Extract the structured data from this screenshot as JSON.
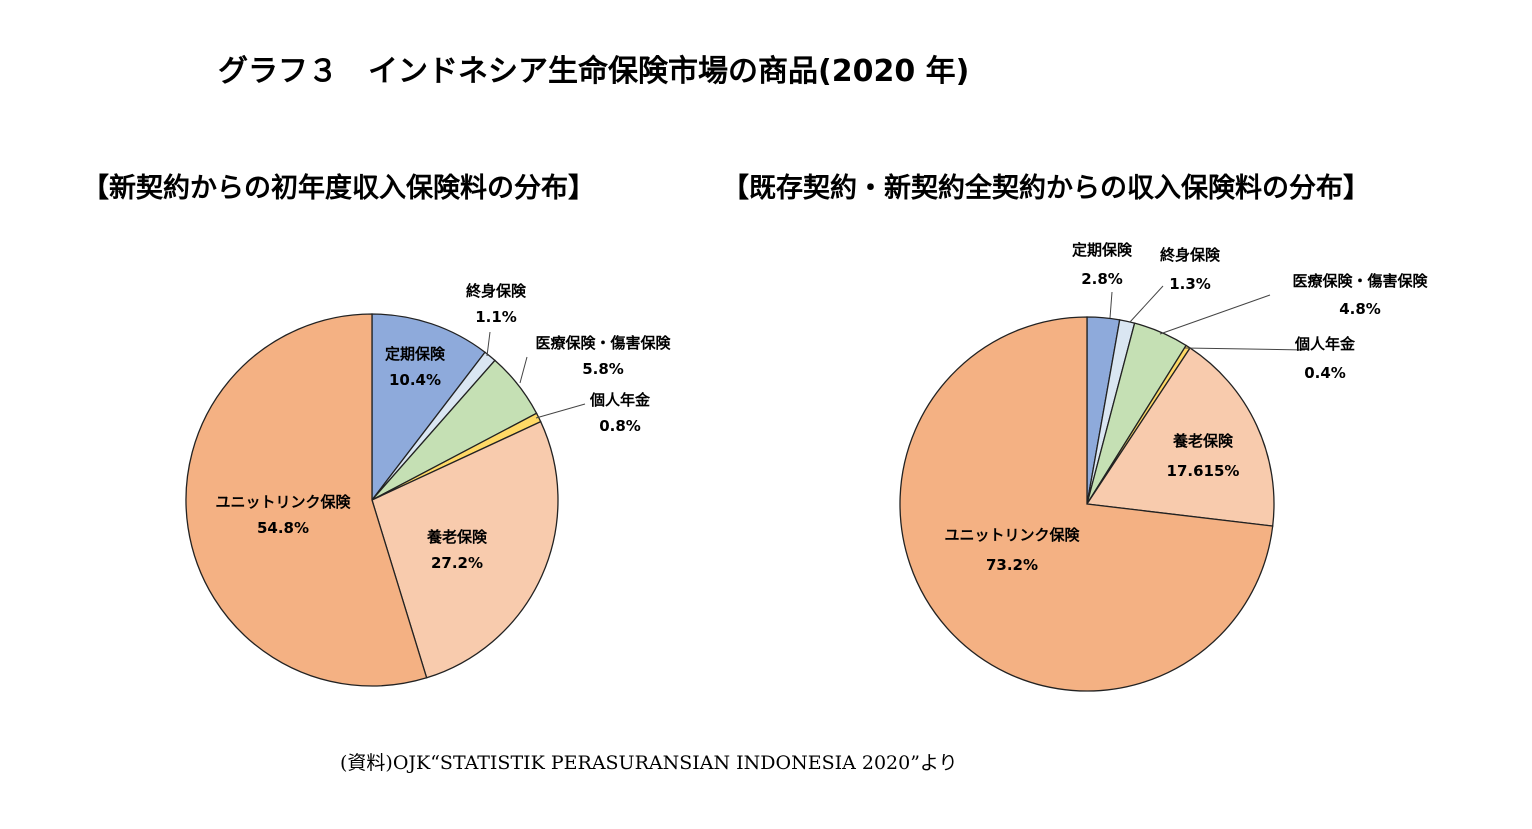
{
  "title": "グラフ３　インドネシア生命保険市場の商品(2020 年)",
  "source": "(資料)OJK“STATISTIK PERASURANSIAN INDONESIA 2020”より",
  "colors": {
    "定期保険": "#8eaadb",
    "終身保険": "#dae6f2",
    "医療保険・傷害保険": "#c5e0b4",
    "個人年金": "#ffd966",
    "養老保険": "#f8cbad",
    "ユニットリンク保険": "#f4b183"
  },
  "chart_data": [
    {
      "type": "pie",
      "title": "【新契約からの初年度収入保険料の分布】",
      "slices": [
        {
          "label": "定期保険",
          "value": 10.4,
          "display": "10.4%"
        },
        {
          "label": "終身保険",
          "value": 1.1,
          "display": "1.1%"
        },
        {
          "label": "医療保険・傷害保険",
          "value": 5.8,
          "display": "5.8%"
        },
        {
          "label": "個人年金",
          "value": 0.8,
          "display": "0.8%"
        },
        {
          "label": "養老保険",
          "value": 27.2,
          "display": "27.2%"
        },
        {
          "label": "ユニットリンク保険",
          "value": 54.8,
          "display": "54.8%"
        }
      ]
    },
    {
      "type": "pie",
      "title": "【既存契約・新契約全契約からの収入保険料の分布】",
      "slices": [
        {
          "label": "定期保険",
          "value": 2.8,
          "display": "2.8%"
        },
        {
          "label": "終身保険",
          "value": 1.3,
          "display": "1.3%"
        },
        {
          "label": "医療保険・傷害保険",
          "value": 4.8,
          "display": "4.8%"
        },
        {
          "label": "個人年金",
          "value": 0.4,
          "display": "0.4%"
        },
        {
          "label": "養老保険",
          "value": 17.615,
          "display": "17.615%"
        },
        {
          "label": "ユニットリンク保険",
          "value": 73.2,
          "display": "73.2%"
        }
      ]
    }
  ]
}
